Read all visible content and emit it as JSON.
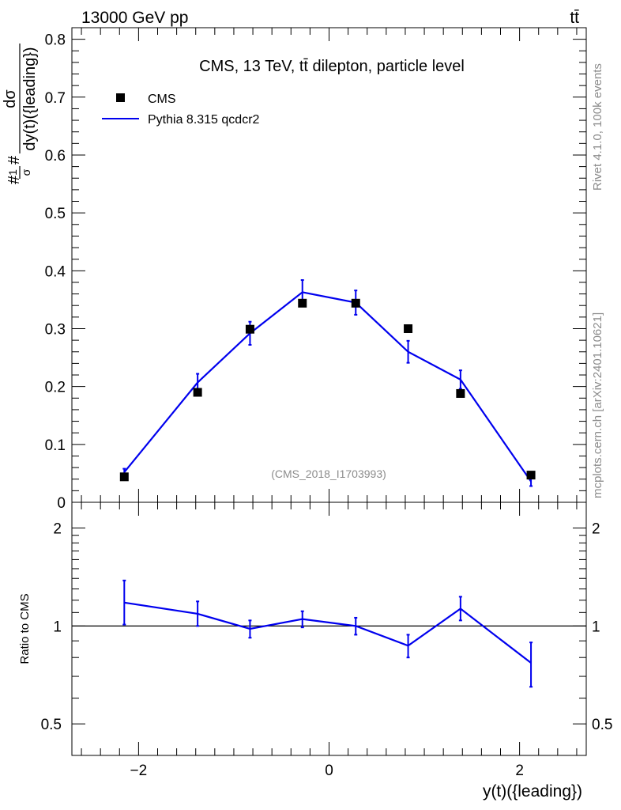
{
  "header": {
    "left": "13000 GeV pp",
    "right": "tt̄"
  },
  "side_labels": {
    "rivet": "Rivet 4.1.0,  100k events",
    "mcplots": "mcplots.cern.ch [arXiv:2401.10621]"
  },
  "colors": {
    "model": "#0000ee",
    "data": "#000000",
    "grey_text": "#8c8c8c"
  },
  "chart_data": [
    {
      "type": "scatter",
      "panel": "main",
      "title": "CMS, 13 TeV, tt̄ dilepton, particle level",
      "ylabel": "#frac{1}{σ}#frac{dσ}{dy(t)({leading})}",
      "ylabel_parts": {
        "num_small": "1",
        "den_small": "σ",
        "num": "dσ",
        "den": "dy(t)({leading})",
        "hash": "#"
      },
      "xlim": [
        -2.7,
        2.7
      ],
      "ylim": [
        0,
        0.82
      ],
      "yticks": [
        0,
        0.1,
        0.2,
        0.3,
        0.4,
        0.5,
        0.6,
        0.7,
        0.8
      ],
      "ytick_labels": [
        "0",
        "0.1",
        "0.2",
        "0.3",
        "0.4",
        "0.5",
        "0.6",
        "0.7",
        "0.8"
      ],
      "watermark": "(CMS_2018_I1703993)",
      "legend": [
        "CMS",
        "Pythia 8.315 qcdcr2"
      ],
      "series": [
        {
          "name": "CMS",
          "marker": "square",
          "x": [
            -2.15,
            -1.38,
            -0.83,
            -0.28,
            0.28,
            0.83,
            1.38,
            2.12
          ],
          "y": [
            0.044,
            0.19,
            0.299,
            0.344,
            0.344,
            0.3,
            0.188,
            0.047
          ]
        },
        {
          "name": "Pythia 8.315 qcdcr2",
          "line": true,
          "x": [
            -2.15,
            -1.38,
            -0.83,
            -0.28,
            0.28,
            0.83,
            1.38,
            2.12
          ],
          "y": [
            0.052,
            0.207,
            0.292,
            0.363,
            0.345,
            0.26,
            0.212,
            0.036
          ],
          "yerr": [
            0.006,
            0.015,
            0.02,
            0.021,
            0.021,
            0.019,
            0.016,
            0.008
          ]
        }
      ]
    },
    {
      "type": "line",
      "panel": "ratio",
      "ylabel": "Ratio to CMS",
      "xlabel": "y(t)({leading})",
      "xlim": [
        -2.7,
        2.7
      ],
      "ylim_log": [
        0.4,
        2.4
      ],
      "yticks": [
        0.5,
        1,
        2
      ],
      "ytick_labels": [
        "0.5",
        "1",
        "2"
      ],
      "xticks": [
        -2,
        0,
        2
      ],
      "xtick_labels": [
        "−2",
        "0",
        "2"
      ],
      "reference": 1,
      "series": [
        {
          "name": "Pythia 8.315 qcdcr2",
          "x": [
            -2.15,
            -1.38,
            -0.83,
            -0.28,
            0.28,
            0.83,
            1.38,
            2.12
          ],
          "y": [
            1.18,
            1.09,
            0.98,
            1.05,
            1.0,
            0.87,
            1.13,
            0.77
          ],
          "err_low": [
            0.17,
            0.09,
            0.06,
            0.06,
            0.06,
            0.07,
            0.09,
            0.12
          ],
          "err_high": [
            0.2,
            0.1,
            0.06,
            0.06,
            0.06,
            0.07,
            0.1,
            0.12
          ]
        }
      ]
    }
  ]
}
